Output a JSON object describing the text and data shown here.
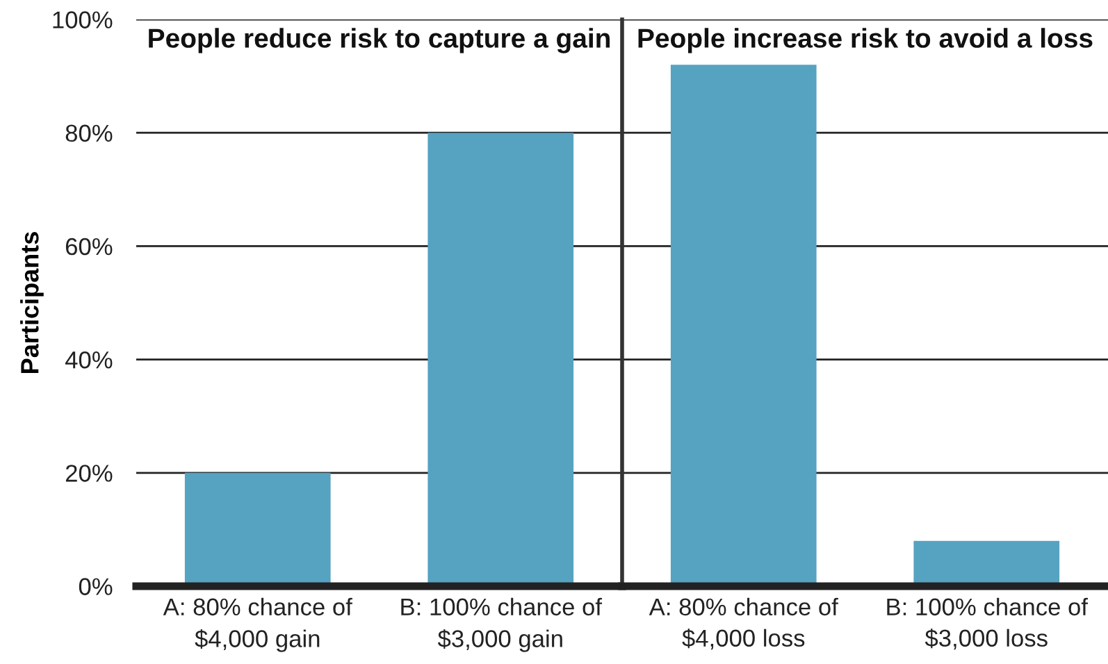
{
  "chart_data": [
    {
      "type": "bar",
      "title": "People reduce risk to capture a gain",
      "ylabel": "Participants",
      "categories": [
        "A: 80% chance of\n$4,000 gain",
        "B: 100% chance of\n$3,000 gain"
      ],
      "values": [
        20,
        80
      ],
      "color": "#56a2c1",
      "ylim": [
        0,
        100
      ],
      "yticks": [
        {
          "value": 0,
          "label": "0%"
        },
        {
          "value": 20,
          "label": "20%"
        },
        {
          "value": 40,
          "label": "40%"
        },
        {
          "value": 60,
          "label": "60%"
        },
        {
          "value": 80,
          "label": "80%"
        },
        {
          "value": 100,
          "label": "100%"
        }
      ],
      "grid": "y"
    },
    {
      "type": "bar",
      "title": "People increase risk to avoid a loss",
      "categories": [
        "A: 80% chance of\n$4,000 loss",
        "B: 100% chance of\n$3,000 loss"
      ],
      "values": [
        92,
        8
      ],
      "color": "#56a2c1",
      "ylim": [
        0,
        100
      ],
      "yticks": [
        0,
        20,
        40,
        60,
        80,
        100
      ],
      "grid": "y",
      "tick_labels": "x"
    }
  ]
}
